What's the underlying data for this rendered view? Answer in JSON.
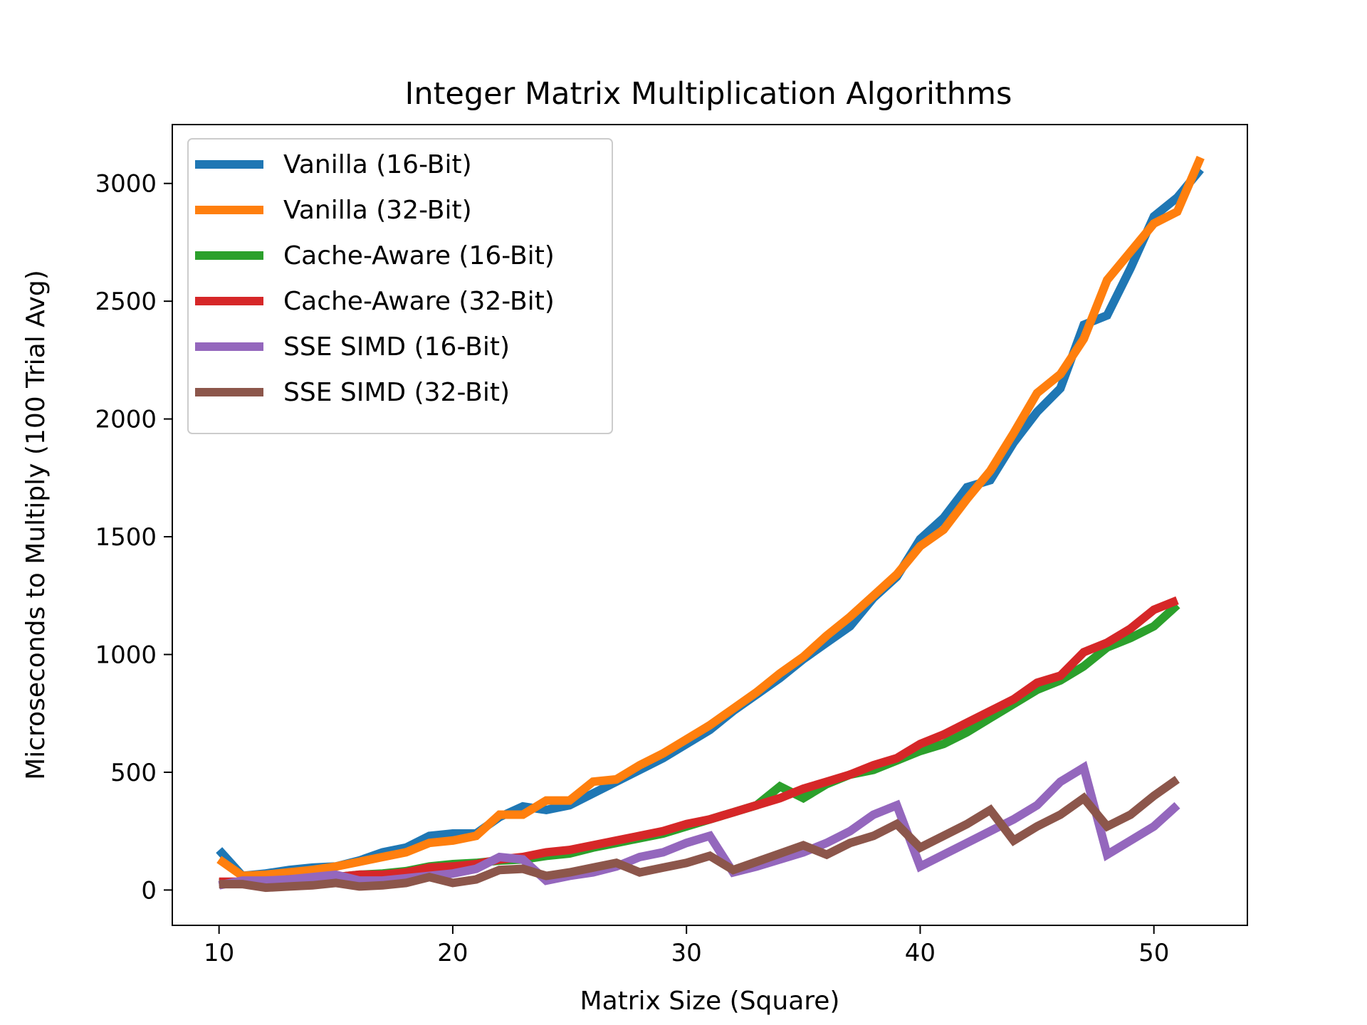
{
  "chart_data": {
    "type": "line",
    "title": "Integer Matrix Multiplication Algorithms",
    "xlabel": "Matrix Size (Square)",
    "ylabel": "Microseconds to Multiply (100 Trial Avg)",
    "xlim": [
      8,
      54
    ],
    "ylim": [
      -150,
      3250
    ],
    "xticks": [
      10,
      20,
      30,
      40,
      50
    ],
    "yticks": [
      0,
      500,
      1000,
      1500,
      2000,
      2500,
      3000
    ],
    "grid": false,
    "legend_position": "upper-left",
    "series": [
      {
        "name": "Vanilla (16-Bit)",
        "color": "#1f77b4",
        "x": [
          10,
          11,
          12,
          13,
          14,
          15,
          16,
          17,
          18,
          19,
          20,
          21,
          22,
          23,
          24,
          25,
          26,
          27,
          28,
          29,
          30,
          31,
          32,
          33,
          34,
          35,
          36,
          37,
          38,
          39,
          40,
          41,
          42,
          43,
          44,
          45,
          46,
          47,
          48,
          49,
          50,
          51,
          52
        ],
        "y": [
          170,
          60,
          70,
          85,
          95,
          100,
          125,
          160,
          180,
          230,
          240,
          240,
          310,
          355,
          340,
          360,
          410,
          460,
          510,
          560,
          620,
          680,
          760,
          830,
          900,
          980,
          1050,
          1120,
          1240,
          1330,
          1490,
          1580,
          1710,
          1740,
          1900,
          2030,
          2130,
          2400,
          2440,
          2640,
          2860,
          2940,
          3060
        ]
      },
      {
        "name": "Vanilla (32-Bit)",
        "color": "#ff7f0e",
        "x": [
          10,
          11,
          12,
          13,
          14,
          15,
          16,
          17,
          18,
          19,
          20,
          21,
          22,
          23,
          24,
          25,
          26,
          27,
          28,
          29,
          30,
          31,
          32,
          33,
          34,
          35,
          36,
          37,
          38,
          39,
          40,
          41,
          42,
          43,
          44,
          45,
          46,
          47,
          48,
          49,
          50,
          51,
          52
        ],
        "y": [
          130,
          60,
          65,
          75,
          85,
          100,
          120,
          140,
          160,
          200,
          210,
          230,
          320,
          320,
          380,
          380,
          460,
          470,
          530,
          580,
          640,
          700,
          770,
          840,
          920,
          990,
          1080,
          1160,
          1250,
          1340,
          1460,
          1530,
          1660,
          1780,
          1940,
          2110,
          2190,
          2340,
          2590,
          2710,
          2830,
          2880,
          3110
        ]
      },
      {
        "name": "Cache-Aware (16-Bit)",
        "color": "#2ca02c",
        "x": [
          10,
          11,
          12,
          13,
          14,
          15,
          16,
          17,
          18,
          19,
          20,
          21,
          22,
          23,
          24,
          25,
          26,
          27,
          28,
          29,
          30,
          31,
          32,
          33,
          34,
          35,
          36,
          37,
          38,
          39,
          40,
          41,
          42,
          43,
          44,
          45,
          46,
          47,
          48,
          49,
          50,
          51
        ],
        "y": [
          30,
          35,
          35,
          45,
          50,
          55,
          65,
          70,
          80,
          100,
          110,
          115,
          125,
          130,
          145,
          155,
          180,
          200,
          220,
          240,
          270,
          300,
          330,
          360,
          440,
          390,
          450,
          490,
          510,
          550,
          590,
          620,
          670,
          730,
          790,
          850,
          890,
          950,
          1030,
          1070,
          1120,
          1210
        ]
      },
      {
        "name": "Cache-Aware (32-Bit)",
        "color": "#d62728",
        "x": [
          10,
          11,
          12,
          13,
          14,
          15,
          16,
          17,
          18,
          19,
          20,
          21,
          22,
          23,
          24,
          25,
          26,
          27,
          28,
          29,
          30,
          31,
          32,
          33,
          34,
          35,
          36,
          37,
          38,
          39,
          40,
          41,
          42,
          43,
          44,
          45,
          46,
          47,
          48,
          49,
          50,
          51
        ],
        "y": [
          35,
          35,
          35,
          45,
          50,
          55,
          65,
          65,
          75,
          95,
          100,
          110,
          130,
          140,
          160,
          170,
          190,
          210,
          230,
          250,
          280,
          300,
          330,
          360,
          390,
          430,
          460,
          490,
          530,
          560,
          620,
          660,
          710,
          760,
          810,
          880,
          910,
          1010,
          1050,
          1110,
          1190,
          1230
        ]
      },
      {
        "name": "SSE SIMD (16-Bit)",
        "color": "#9467bd",
        "x": [
          10,
          11,
          12,
          13,
          14,
          15,
          16,
          17,
          18,
          19,
          20,
          21,
          22,
          23,
          24,
          25,
          26,
          27,
          28,
          29,
          30,
          31,
          32,
          33,
          34,
          35,
          36,
          37,
          38,
          39,
          40,
          41,
          42,
          43,
          44,
          45,
          46,
          47,
          48,
          49,
          50,
          51
        ],
        "y": [
          20,
          40,
          40,
          45,
          55,
          65,
          40,
          40,
          50,
          60,
          70,
          90,
          140,
          130,
          40,
          60,
          75,
          100,
          140,
          160,
          200,
          230,
          75,
          100,
          130,
          160,
          200,
          250,
          320,
          360,
          100,
          150,
          200,
          250,
          300,
          360,
          460,
          520,
          150,
          210,
          270,
          360
        ]
      },
      {
        "name": "SSE SIMD (32-Bit)",
        "color": "#8c564b",
        "x": [
          10,
          11,
          12,
          13,
          14,
          15,
          16,
          17,
          18,
          19,
          20,
          21,
          22,
          23,
          24,
          25,
          26,
          27,
          28,
          29,
          30,
          31,
          32,
          33,
          34,
          35,
          36,
          37,
          38,
          39,
          40,
          41,
          42,
          43,
          44,
          45,
          46,
          47,
          48,
          49,
          50,
          51
        ],
        "y": [
          25,
          25,
          10,
          15,
          20,
          30,
          15,
          20,
          30,
          55,
          30,
          45,
          85,
          90,
          60,
          75,
          95,
          115,
          75,
          95,
          115,
          145,
          85,
          120,
          155,
          190,
          150,
          200,
          230,
          280,
          180,
          230,
          280,
          340,
          210,
          270,
          320,
          390,
          270,
          320,
          400,
          470
        ]
      }
    ]
  }
}
